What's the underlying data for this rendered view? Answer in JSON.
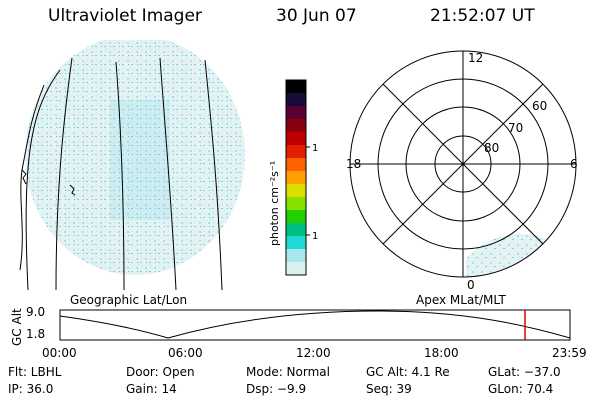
{
  "header": {
    "title": "Ultraviolet Imager",
    "date": "30 Jun 07",
    "time": "21:52:07 UT"
  },
  "geo_panel": {
    "label": "Geographic Lat/Lon"
  },
  "colorbar": {
    "label": "photon cm⁻²s⁻¹",
    "ticks": [
      "100",
      "10"
    ],
    "colors": [
      "#000000",
      "#1a0a3a",
      "#5a0030",
      "#8a0010",
      "#c00000",
      "#e02000",
      "#ff6000",
      "#ffa000",
      "#d8e000",
      "#88e000",
      "#20d000",
      "#00c080",
      "#20d8d8",
      "#a8e8ec",
      "#dcf0f2"
    ]
  },
  "polar_panel": {
    "label": "Apex MLat/MLT",
    "mlt_labels": {
      "top": "12",
      "left": "18",
      "right": "6",
      "bottom": "0"
    },
    "mlat_labels": [
      "60",
      "70",
      "80"
    ]
  },
  "altitude_plot": {
    "ylabel": "GC Alt",
    "y_ticks": [
      "9.0",
      "1.8"
    ],
    "x_ticks": [
      "00:00",
      "06:00",
      "12:00",
      "18:00",
      "23:59"
    ],
    "marker_color": "#e00000"
  },
  "info": {
    "flt": "Flt: LBHL",
    "door": "Door: Open",
    "mode": "Mode: Normal",
    "gc_alt": "GC Alt: 4.1 Re",
    "glat": "GLat: −37.0",
    "ip": "IP: 36.0",
    "gain": "Gain: 14",
    "dsp": "Dsp:    −9.9",
    "seq": "Seq: 39",
    "glon": "GLon:  70.4"
  }
}
